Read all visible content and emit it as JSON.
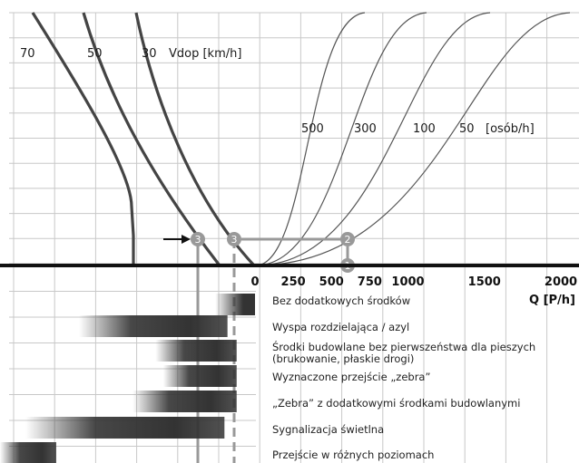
{
  "chart_data": {
    "type": "line",
    "speed_curves": {
      "unit_label": "Vdop [km/h]",
      "labels": [
        "70",
        "50",
        "30"
      ]
    },
    "pedestrian_curves": {
      "unit_label": "[osób/h]",
      "labels": [
        "500",
        "300",
        "100",
        "50"
      ]
    },
    "x_axis": {
      "label": "Q [P/h]",
      "ticks": [
        "0",
        "250",
        "500",
        "750",
        "1000",
        "1500",
        "2000"
      ],
      "tick_values": [
        0,
        250,
        500,
        750,
        1000,
        1500,
        2000
      ],
      "range": [
        0,
        2000
      ]
    },
    "markers": [
      "1",
      "2",
      "3",
      "3"
    ],
    "measures": [
      {
        "label": "Bez dodatkowych środków",
        "range": [
          -260,
          0
        ]
      },
      {
        "label": "Wyspa rozdzielająca / azyl",
        "range": [
          -1150,
          -180
        ]
      },
      {
        "label": "Środki budowlane bez pierwszeństwa dla pieszych (brukowanie, płaskie drogi)",
        "line1": "Środki budowlane bez pierwszeństwa dla pieszych",
        "line2": "(brukowanie, płaskie drogi)",
        "range": [
          -650,
          -120
        ]
      },
      {
        "label": "Wyznaczone przejście „zebra”",
        "range": [
          -600,
          -120
        ]
      },
      {
        "label": "„Zebra” z dodatkowymi środkami budowlanymi",
        "range": [
          -800,
          -120
        ]
      },
      {
        "label": "Sygnalizacja świetlna",
        "range": [
          -1500,
          -200
        ]
      },
      {
        "label": "Przejście w różnych poziomach",
        "range": [
          -2000,
          -1300
        ]
      }
    ]
  }
}
